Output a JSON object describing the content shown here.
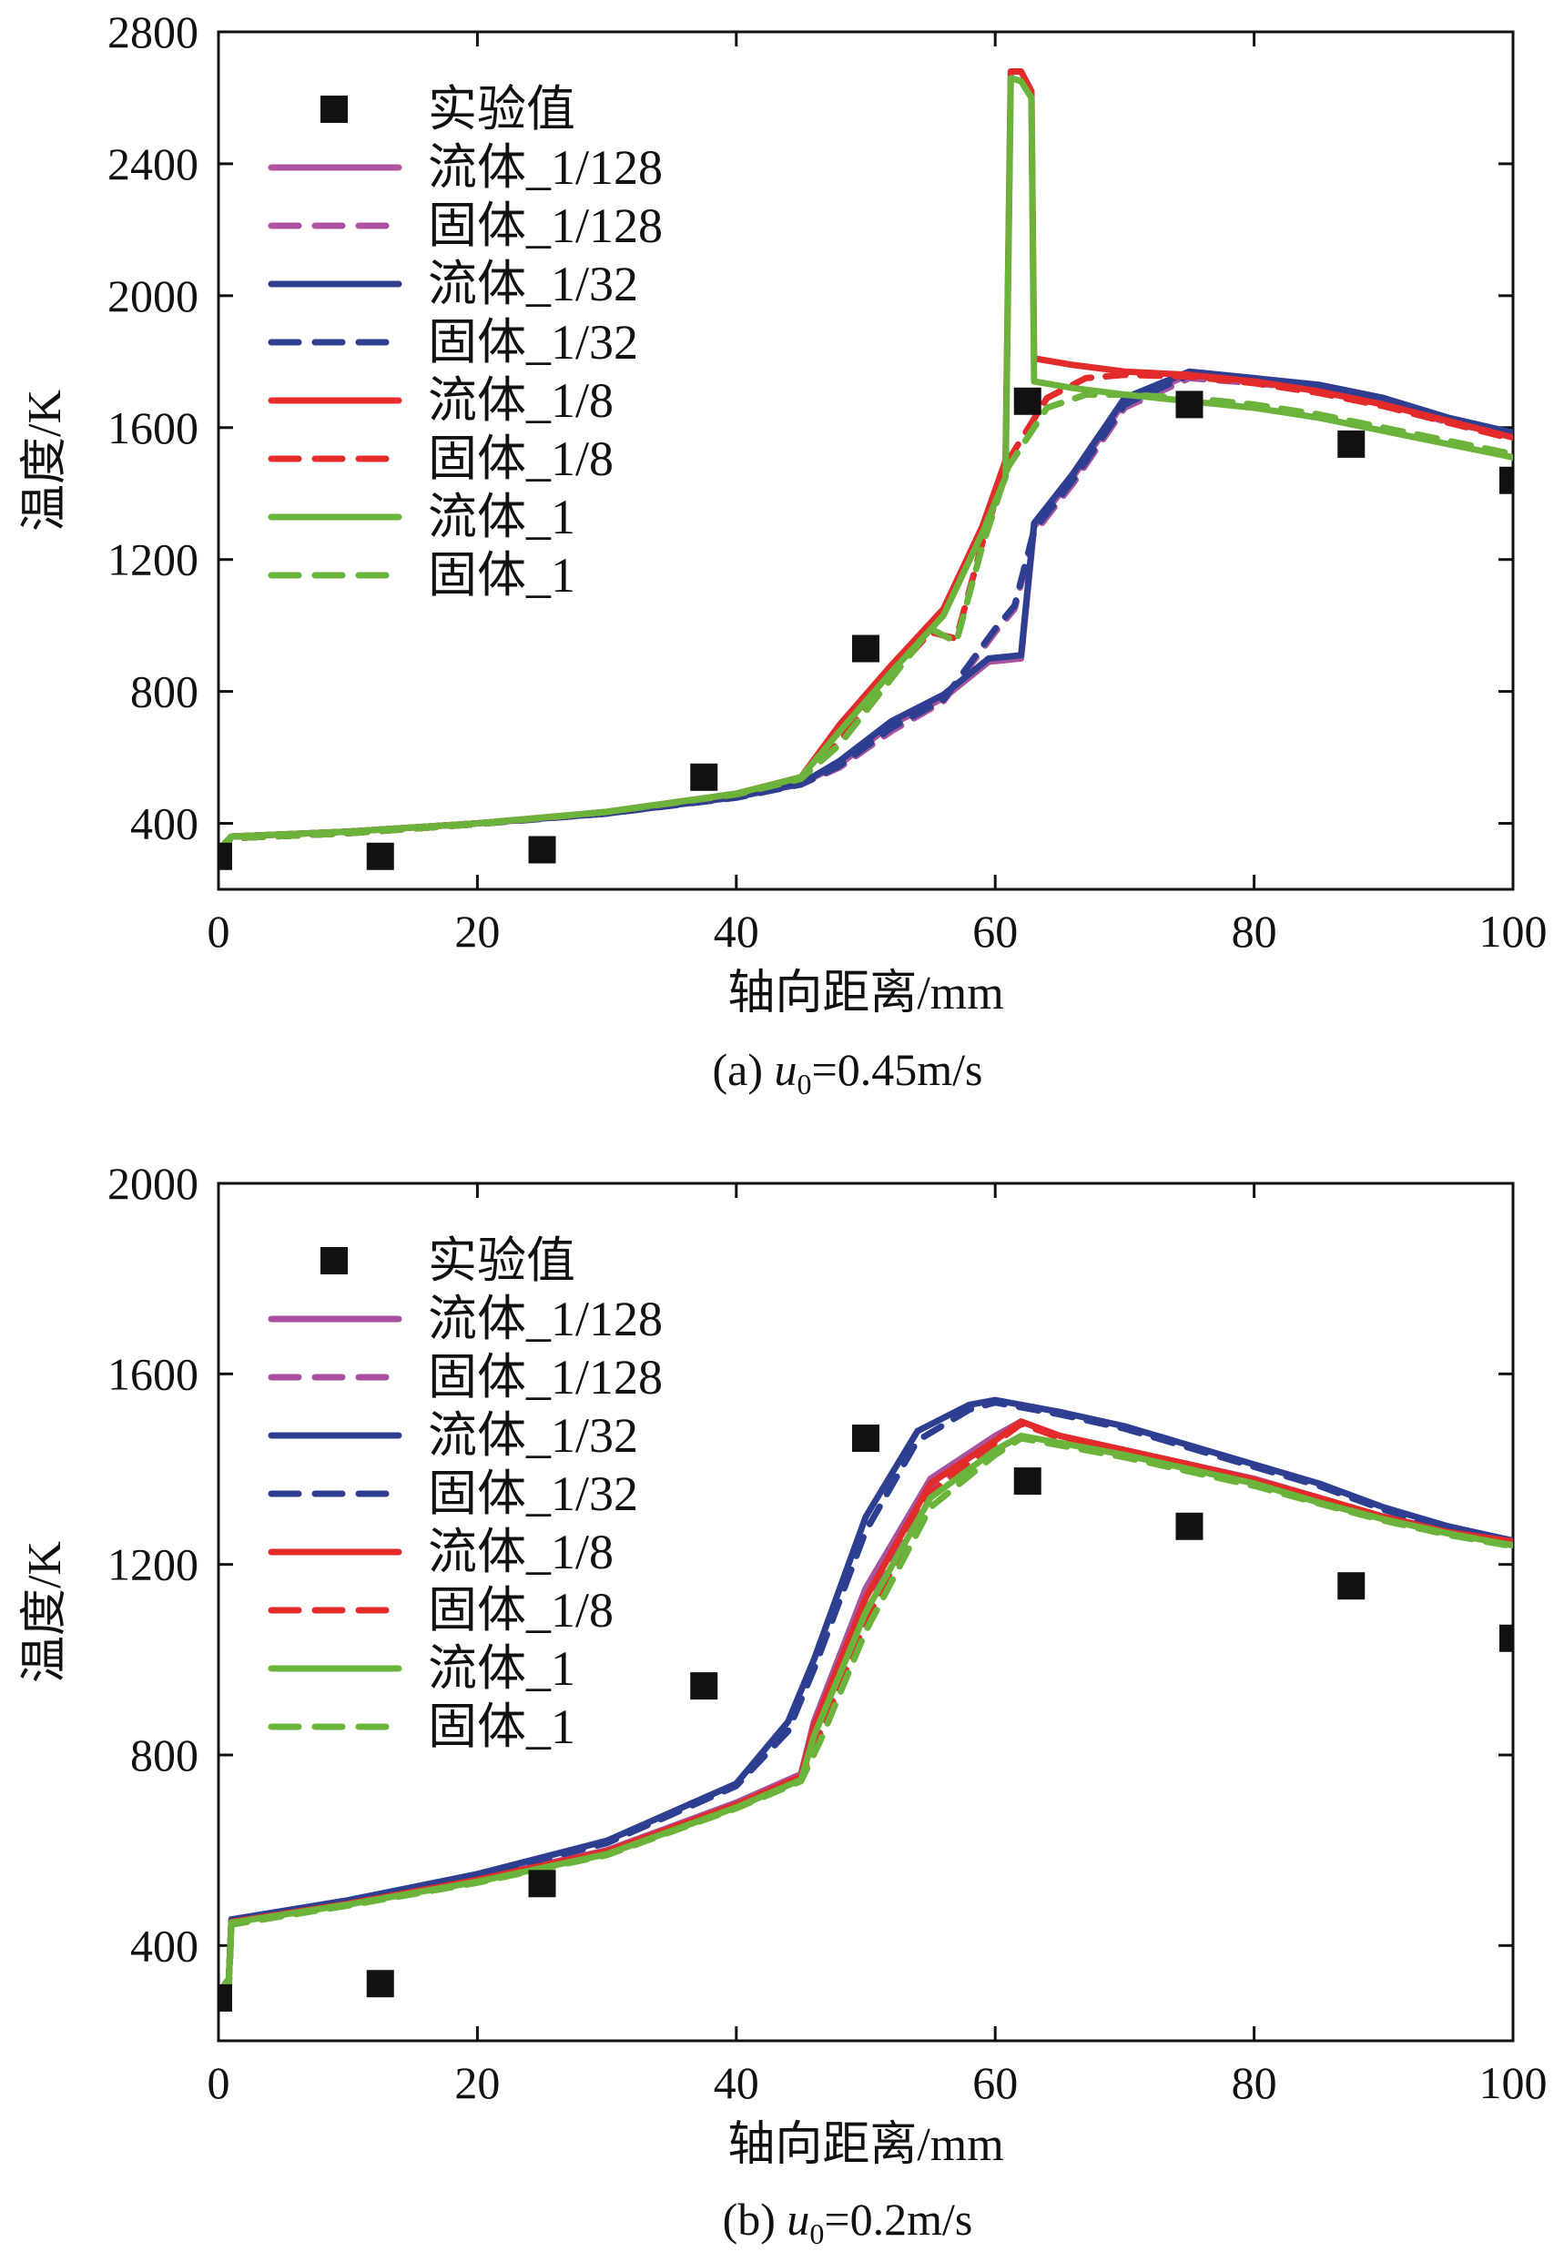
{
  "colors": {
    "purple": "#a8539f",
    "blue": "#2e3f92",
    "red": "#e32b2b",
    "green": "#6bb33a",
    "marker": "#111111"
  },
  "chart_data": [
    {
      "type": "line",
      "caption_prefix": "(a) ",
      "caption_var": "u",
      "caption_sub": "0",
      "caption_rest": "=0.45m/s",
      "xlabel": "轴向距离/mm",
      "ylabel": "温度/K",
      "xlim": [
        0,
        100
      ],
      "ylim": [
        200,
        2800
      ],
      "xticks": [
        0,
        20,
        40,
        60,
        80,
        100
      ],
      "yticks": [
        400,
        800,
        1200,
        1600,
        2000,
        2400,
        2800
      ],
      "legend_position": "top-left",
      "experimental": {
        "name": "实验值",
        "x": [
          0,
          12.5,
          25,
          37.5,
          50,
          62.5,
          75,
          87.5,
          100
        ],
        "y": [
          300,
          300,
          320,
          540,
          930,
          1680,
          1670,
          1550,
          1440
        ]
      },
      "series": [
        {
          "name": "流体_1/128",
          "color_key": "purple",
          "dash": false,
          "x": [
            0,
            0.5,
            1,
            10,
            20,
            30,
            40,
            45,
            48,
            52,
            56,
            59.5,
            62,
            63,
            66,
            70,
            75,
            80,
            85,
            90,
            95,
            100
          ],
          "y": [
            310,
            340,
            360,
            375,
            400,
            430,
            480,
            520,
            580,
            700,
            780,
            890,
            900,
            1300,
            1450,
            1680,
            1760,
            1740,
            1720,
            1680,
            1620,
            1580
          ]
        },
        {
          "name": "固体_1/128",
          "color_key": "purple",
          "dash": true,
          "x": [
            0,
            0.5,
            1,
            10,
            20,
            30,
            40,
            45,
            48,
            52,
            56,
            60,
            61.5,
            63,
            66,
            70,
            75,
            80,
            85,
            90,
            95,
            100
          ],
          "y": [
            300,
            335,
            355,
            370,
            398,
            430,
            478,
            518,
            570,
            680,
            770,
            980,
            1050,
            1280,
            1430,
            1660,
            1750,
            1735,
            1715,
            1675,
            1615,
            1575
          ]
        },
        {
          "name": "流体_1/32",
          "color_key": "blue",
          "dash": false,
          "x": [
            0,
            0.5,
            1,
            10,
            20,
            30,
            40,
            45,
            48,
            52,
            56,
            59.5,
            62,
            63,
            66,
            70,
            75,
            80,
            85,
            90,
            95,
            100
          ],
          "y": [
            310,
            340,
            360,
            375,
            400,
            430,
            480,
            520,
            590,
            710,
            790,
            900,
            910,
            1310,
            1460,
            1690,
            1770,
            1750,
            1730,
            1690,
            1630,
            1585
          ]
        },
        {
          "name": "固体_1/32",
          "color_key": "blue",
          "dash": true,
          "x": [
            0,
            0.5,
            1,
            10,
            20,
            30,
            40,
            45,
            48,
            52,
            56,
            60,
            61.5,
            63,
            66,
            70,
            75,
            80,
            85,
            90,
            95,
            100
          ],
          "y": [
            300,
            335,
            355,
            370,
            398,
            430,
            478,
            518,
            575,
            690,
            775,
            990,
            1060,
            1290,
            1440,
            1670,
            1760,
            1745,
            1725,
            1685,
            1625,
            1580
          ]
        },
        {
          "name": "流体_1/8",
          "color_key": "red",
          "dash": false,
          "x": [
            0,
            0.5,
            1,
            10,
            20,
            30,
            40,
            45,
            48,
            52,
            56,
            59,
            60.8,
            61.2,
            62,
            62.8,
            63,
            66,
            70,
            75,
            80,
            85,
            90,
            95,
            100
          ],
          "y": [
            310,
            340,
            360,
            375,
            400,
            435,
            490,
            540,
            700,
            880,
            1050,
            1300,
            1500,
            2680,
            2680,
            2620,
            1810,
            1790,
            1770,
            1760,
            1740,
            1710,
            1670,
            1620,
            1570
          ]
        },
        {
          "name": "固体_1/8",
          "color_key": "red",
          "dash": true,
          "x": [
            0,
            0.5,
            1,
            10,
            20,
            30,
            40,
            45,
            48,
            52,
            55,
            57,
            59,
            61,
            64,
            67,
            70,
            75,
            80,
            85,
            90,
            95,
            100
          ],
          "y": [
            300,
            335,
            355,
            370,
            398,
            435,
            488,
            535,
            650,
            850,
            980,
            960,
            1250,
            1500,
            1690,
            1750,
            1760,
            1755,
            1735,
            1705,
            1665,
            1615,
            1565
          ]
        },
        {
          "name": "流体_1",
          "color_key": "green",
          "dash": false,
          "x": [
            0,
            0.5,
            1,
            10,
            20,
            30,
            40,
            45,
            48,
            52,
            56,
            59,
            60.8,
            61.2,
            62,
            62.8,
            63,
            66,
            70,
            75,
            80,
            85,
            90,
            95,
            100
          ],
          "y": [
            310,
            340,
            360,
            375,
            400,
            435,
            490,
            540,
            680,
            860,
            1030,
            1280,
            1450,
            2660,
            2650,
            2600,
            1740,
            1720,
            1700,
            1680,
            1660,
            1630,
            1590,
            1550,
            1510
          ]
        },
        {
          "name": "固体_1",
          "color_key": "green",
          "dash": true,
          "x": [
            0,
            0.5,
            1,
            10,
            20,
            30,
            40,
            45,
            48,
            52,
            55,
            57,
            59,
            61,
            64,
            67,
            70,
            75,
            80,
            85,
            90,
            95,
            100
          ],
          "y": [
            300,
            335,
            355,
            370,
            398,
            435,
            488,
            535,
            640,
            840,
            990,
            950,
            1240,
            1480,
            1660,
            1700,
            1700,
            1690,
            1670,
            1640,
            1600,
            1560,
            1520
          ]
        }
      ]
    },
    {
      "type": "line",
      "caption_prefix": "(b) ",
      "caption_var": "u",
      "caption_sub": "0",
      "caption_rest": "=0.2m/s",
      "xlabel": "轴向距离/mm",
      "ylabel": "温度/K",
      "xlim": [
        0,
        100
      ],
      "ylim": [
        200,
        2000
      ],
      "xticks": [
        0,
        20,
        40,
        60,
        80,
        100
      ],
      "yticks": [
        400,
        800,
        1200,
        1600,
        2000
      ],
      "legend_position": "top-left",
      "experimental": {
        "name": "实验值",
        "x": [
          0,
          12.5,
          25,
          37.5,
          50,
          62.5,
          75,
          87.5,
          100
        ],
        "y": [
          290,
          320,
          530,
          945,
          1465,
          1375,
          1280,
          1155,
          1045
        ]
      },
      "series": [
        {
          "name": "流体_1/128",
          "color_key": "purple",
          "dash": false,
          "x": [
            0,
            0.8,
            1,
            10,
            20,
            30,
            40,
            45,
            46,
            50,
            55,
            60,
            62,
            65,
            70,
            75,
            80,
            85,
            90,
            95,
            100
          ],
          "y": [
            300,
            330,
            450,
            490,
            540,
            600,
            700,
            760,
            870,
            1150,
            1380,
            1470,
            1500,
            1470,
            1440,
            1410,
            1380,
            1340,
            1300,
            1270,
            1245
          ]
        },
        {
          "name": "固体_1/128",
          "color_key": "purple",
          "dash": true,
          "x": [
            0,
            0.8,
            1,
            10,
            20,
            30,
            40,
            45,
            46.5,
            50,
            55,
            60,
            62,
            65,
            70,
            75,
            80,
            85,
            90,
            95,
            100
          ],
          "y": [
            300,
            320,
            445,
            488,
            538,
            598,
            698,
            755,
            850,
            1100,
            1360,
            1460,
            1495,
            1468,
            1438,
            1408,
            1378,
            1338,
            1298,
            1268,
            1242
          ]
        },
        {
          "name": "流体_1/32",
          "color_key": "blue",
          "dash": false,
          "x": [
            0,
            0.8,
            1,
            10,
            20,
            30,
            35,
            40,
            44,
            46,
            50,
            54,
            58,
            60,
            62,
            65,
            70,
            75,
            80,
            85,
            90,
            95,
            100
          ],
          "y": [
            300,
            330,
            455,
            495,
            550,
            620,
            680,
            740,
            870,
            1000,
            1300,
            1480,
            1535,
            1545,
            1535,
            1520,
            1490,
            1450,
            1410,
            1370,
            1320,
            1280,
            1250
          ]
        },
        {
          "name": "固体_1/32",
          "color_key": "blue",
          "dash": true,
          "x": [
            0,
            0.8,
            1,
            10,
            20,
            30,
            35,
            40,
            44,
            46,
            50,
            54,
            58,
            60,
            62,
            65,
            70,
            75,
            80,
            85,
            90,
            95,
            100
          ],
          "y": [
            300,
            320,
            450,
            492,
            546,
            615,
            675,
            735,
            850,
            980,
            1270,
            1460,
            1525,
            1540,
            1530,
            1515,
            1485,
            1445,
            1405,
            1365,
            1315,
            1275,
            1245
          ]
        },
        {
          "name": "流体_1/8",
          "color_key": "red",
          "dash": false,
          "x": [
            0,
            0.8,
            1,
            10,
            20,
            30,
            40,
            45,
            46,
            50,
            55,
            60,
            62,
            65,
            70,
            75,
            80,
            85,
            90,
            95,
            100
          ],
          "y": [
            300,
            330,
            450,
            488,
            538,
            598,
            696,
            755,
            860,
            1130,
            1370,
            1460,
            1500,
            1470,
            1440,
            1410,
            1378,
            1340,
            1300,
            1268,
            1248
          ]
        },
        {
          "name": "固体_1/8",
          "color_key": "red",
          "dash": true,
          "x": [
            0,
            0.8,
            1,
            10,
            20,
            30,
            40,
            45,
            46.5,
            50,
            55,
            60,
            62,
            65,
            70,
            75,
            80,
            85,
            90,
            95,
            100
          ],
          "y": [
            300,
            320,
            445,
            486,
            536,
            596,
            694,
            752,
            845,
            1080,
            1350,
            1455,
            1495,
            1466,
            1436,
            1406,
            1376,
            1336,
            1296,
            1266,
            1244
          ]
        },
        {
          "name": "流体_1",
          "color_key": "green",
          "dash": false,
          "x": [
            0,
            0.8,
            1,
            10,
            20,
            30,
            40,
            45,
            46,
            50,
            55,
            60,
            62,
            65,
            70,
            75,
            80,
            85,
            90,
            95,
            100
          ],
          "y": [
            300,
            330,
            448,
            486,
            534,
            592,
            690,
            748,
            840,
            1100,
            1340,
            1440,
            1470,
            1455,
            1430,
            1400,
            1370,
            1330,
            1295,
            1265,
            1240
          ]
        },
        {
          "name": "固体_1",
          "color_key": "green",
          "dash": true,
          "x": [
            0,
            0.8,
            1,
            10,
            20,
            30,
            40,
            45,
            46.5,
            50,
            55,
            60,
            62,
            65,
            70,
            75,
            80,
            85,
            90,
            95,
            100
          ],
          "y": [
            300,
            320,
            444,
            484,
            532,
            590,
            688,
            745,
            830,
            1060,
            1320,
            1430,
            1465,
            1450,
            1425,
            1395,
            1365,
            1328,
            1292,
            1262,
            1238
          ]
        }
      ]
    }
  ]
}
